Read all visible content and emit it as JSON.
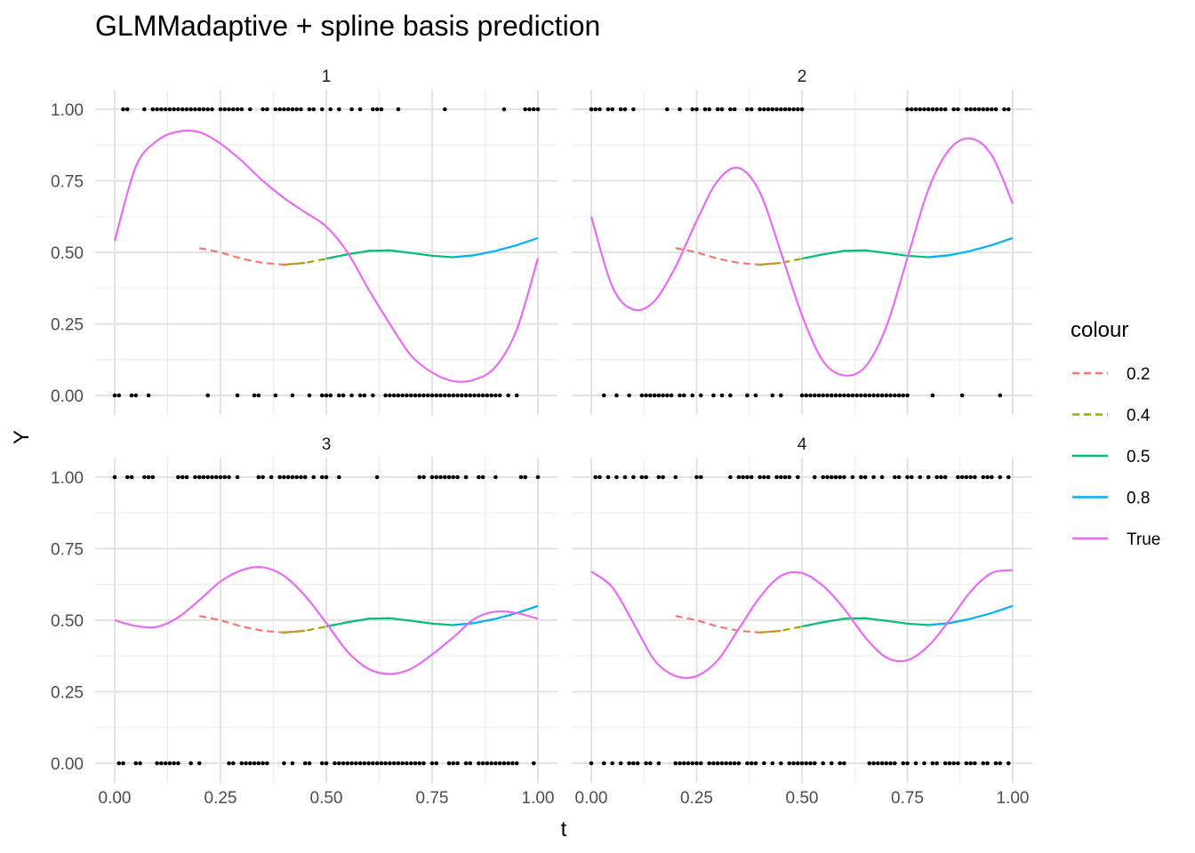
{
  "chart_data": {
    "type": "line",
    "title": "GLMMadaptive + spline basis prediction",
    "xlabel": "t",
    "ylabel": "Y",
    "xlim": [
      0,
      1
    ],
    "ylim": [
      0,
      1
    ],
    "x_ticks": [
      "0.00",
      "0.25",
      "0.50",
      "0.75",
      "1.00"
    ],
    "y_ticks": [
      "0.00",
      "0.25",
      "0.50",
      "0.75",
      "1.00"
    ],
    "grid": true,
    "legend": {
      "title": "colour",
      "placement": "right",
      "entries": [
        {
          "label": "0.2",
          "color": "#F8766D",
          "dashed": true
        },
        {
          "label": "0.4",
          "color": "#A3A500",
          "dashed": true
        },
        {
          "label": "0.5",
          "color": "#00BF7D",
          "dashed": false
        },
        {
          "label": "0.8",
          "color": "#00B0F6",
          "dashed": false
        },
        {
          "label": "True",
          "color": "#E76BF3",
          "dashed": false
        }
      ]
    },
    "colors": {
      "0.2": "#F8766D",
      "0.4": "#A3A500",
      "0.5": "#00BF7D",
      "0.8": "#00B0F6",
      "True": "#E76BF3",
      "points": "#000000"
    },
    "predicted_series": {
      "segments": [
        {
          "name": "0.2",
          "x_range": [
            0.2,
            0.45
          ]
        },
        {
          "name": "0.4",
          "x_range": [
            0.4,
            0.65
          ]
        },
        {
          "name": "0.5",
          "x_range": [
            0.5,
            0.85
          ]
        },
        {
          "name": "0.8",
          "x_range": [
            0.8,
            1.0
          ]
        }
      ],
      "x": [
        0.2,
        0.25,
        0.3,
        0.35,
        0.4,
        0.45,
        0.5,
        0.55,
        0.6,
        0.65,
        0.7,
        0.75,
        0.8,
        0.85,
        0.9,
        0.95,
        1.0
      ],
      "y": [
        0.515,
        0.5,
        0.478,
        0.463,
        0.457,
        0.463,
        0.478,
        0.493,
        0.505,
        0.507,
        0.498,
        0.488,
        0.483,
        0.49,
        0.505,
        0.525,
        0.55
      ]
    },
    "panels": [
      {
        "label": "1",
        "true_curve": {
          "x": [
            0.0,
            0.05,
            0.1,
            0.15,
            0.2,
            0.25,
            0.3,
            0.35,
            0.4,
            0.45,
            0.5,
            0.55,
            0.6,
            0.65,
            0.7,
            0.75,
            0.8,
            0.85,
            0.9,
            0.95,
            1.0
          ],
          "y": [
            0.54,
            0.8,
            0.89,
            0.922,
            0.92,
            0.88,
            0.82,
            0.75,
            0.69,
            0.64,
            0.59,
            0.5,
            0.37,
            0.25,
            0.14,
            0.08,
            0.05,
            0.055,
            0.1,
            0.23,
            0.48
          ]
        },
        "points_y1": [
          0.02,
          0.03,
          0.07,
          0.09,
          0.1,
          0.11,
          0.12,
          0.13,
          0.14,
          0.15,
          0.16,
          0.17,
          0.18,
          0.19,
          0.2,
          0.21,
          0.22,
          0.23,
          0.25,
          0.26,
          0.27,
          0.28,
          0.29,
          0.3,
          0.32,
          0.35,
          0.36,
          0.38,
          0.39,
          0.4,
          0.41,
          0.42,
          0.43,
          0.44,
          0.46,
          0.47,
          0.49,
          0.51,
          0.53,
          0.56,
          0.58,
          0.61,
          0.62,
          0.63,
          0.67,
          0.78,
          0.92,
          0.97,
          0.98,
          0.99,
          1.0
        ],
        "points_y0": [
          0.0,
          0.01,
          0.04,
          0.05,
          0.08,
          0.22,
          0.29,
          0.33,
          0.34,
          0.38,
          0.42,
          0.46,
          0.49,
          0.5,
          0.51,
          0.53,
          0.54,
          0.56,
          0.58,
          0.59,
          0.61,
          0.64,
          0.65,
          0.66,
          0.67,
          0.68,
          0.69,
          0.7,
          0.71,
          0.72,
          0.73,
          0.74,
          0.75,
          0.76,
          0.77,
          0.78,
          0.79,
          0.8,
          0.81,
          0.82,
          0.83,
          0.84,
          0.85,
          0.86,
          0.87,
          0.88,
          0.89,
          0.9,
          0.91,
          0.93,
          0.95
        ]
      },
      {
        "label": "2",
        "true_curve": {
          "x": [
            0.0,
            0.05,
            0.1,
            0.15,
            0.2,
            0.25,
            0.3,
            0.35,
            0.4,
            0.45,
            0.5,
            0.55,
            0.6,
            0.65,
            0.7,
            0.75,
            0.8,
            0.85,
            0.9,
            0.95,
            1.0
          ],
          "y": [
            0.625,
            0.38,
            0.3,
            0.33,
            0.45,
            0.61,
            0.75,
            0.795,
            0.71,
            0.5,
            0.28,
            0.12,
            0.07,
            0.1,
            0.24,
            0.48,
            0.72,
            0.86,
            0.898,
            0.84,
            0.67
          ]
        },
        "points_y1": [
          0.0,
          0.01,
          0.02,
          0.04,
          0.05,
          0.07,
          0.08,
          0.1,
          0.18,
          0.21,
          0.24,
          0.25,
          0.27,
          0.28,
          0.3,
          0.31,
          0.33,
          0.34,
          0.37,
          0.38,
          0.4,
          0.41,
          0.42,
          0.43,
          0.44,
          0.45,
          0.46,
          0.47,
          0.48,
          0.49,
          0.5,
          0.75,
          0.76,
          0.77,
          0.78,
          0.79,
          0.8,
          0.81,
          0.82,
          0.83,
          0.84,
          0.86,
          0.87,
          0.89,
          0.9,
          0.91,
          0.92,
          0.93,
          0.94,
          0.95,
          0.96,
          0.98,
          0.99
        ],
        "points_y0": [
          0.03,
          0.06,
          0.09,
          0.12,
          0.13,
          0.14,
          0.15,
          0.16,
          0.17,
          0.18,
          0.19,
          0.21,
          0.22,
          0.24,
          0.26,
          0.29,
          0.31,
          0.33,
          0.37,
          0.39,
          0.43,
          0.45,
          0.5,
          0.51,
          0.52,
          0.53,
          0.54,
          0.55,
          0.56,
          0.57,
          0.58,
          0.59,
          0.6,
          0.61,
          0.62,
          0.63,
          0.64,
          0.65,
          0.66,
          0.67,
          0.68,
          0.69,
          0.7,
          0.71,
          0.72,
          0.73,
          0.74,
          0.75,
          0.81,
          0.88,
          0.97
        ]
      },
      {
        "label": "3",
        "true_curve": {
          "x": [
            0.0,
            0.05,
            0.1,
            0.15,
            0.2,
            0.25,
            0.3,
            0.35,
            0.4,
            0.45,
            0.5,
            0.55,
            0.6,
            0.65,
            0.7,
            0.75,
            0.8,
            0.85,
            0.9,
            0.95,
            1.0
          ],
          "y": [
            0.5,
            0.48,
            0.477,
            0.51,
            0.57,
            0.635,
            0.675,
            0.685,
            0.655,
            0.585,
            0.49,
            0.39,
            0.33,
            0.312,
            0.33,
            0.38,
            0.44,
            0.505,
            0.53,
            0.525,
            0.505
          ]
        },
        "points_y1": [
          0.0,
          0.03,
          0.04,
          0.07,
          0.08,
          0.09,
          0.15,
          0.16,
          0.17,
          0.19,
          0.2,
          0.21,
          0.22,
          0.23,
          0.24,
          0.25,
          0.26,
          0.27,
          0.29,
          0.34,
          0.35,
          0.37,
          0.39,
          0.4,
          0.41,
          0.42,
          0.43,
          0.44,
          0.45,
          0.47,
          0.49,
          0.5,
          0.53,
          0.62,
          0.72,
          0.73,
          0.75,
          0.76,
          0.77,
          0.78,
          0.79,
          0.8,
          0.81,
          0.83,
          0.86,
          0.87,
          0.9,
          0.96,
          0.97,
          1.0
        ],
        "points_y0": [
          0.01,
          0.02,
          0.05,
          0.06,
          0.1,
          0.11,
          0.12,
          0.13,
          0.14,
          0.15,
          0.18,
          0.2,
          0.27,
          0.28,
          0.3,
          0.31,
          0.32,
          0.33,
          0.34,
          0.35,
          0.36,
          0.4,
          0.42,
          0.45,
          0.46,
          0.49,
          0.5,
          0.52,
          0.53,
          0.54,
          0.55,
          0.56,
          0.57,
          0.58,
          0.59,
          0.6,
          0.61,
          0.62,
          0.63,
          0.64,
          0.65,
          0.66,
          0.67,
          0.68,
          0.69,
          0.7,
          0.71,
          0.72,
          0.73,
          0.75,
          0.76,
          0.79,
          0.8,
          0.81,
          0.83,
          0.84,
          0.86,
          0.87,
          0.88,
          0.89,
          0.9,
          0.91,
          0.92,
          0.93,
          0.94,
          0.95,
          0.99
        ]
      },
      {
        "label": "4",
        "true_curve": {
          "x": [
            0.0,
            0.05,
            0.1,
            0.15,
            0.2,
            0.25,
            0.3,
            0.35,
            0.4,
            0.45,
            0.5,
            0.55,
            0.6,
            0.65,
            0.7,
            0.75,
            0.8,
            0.85,
            0.9,
            0.95,
            1.0
          ],
          "y": [
            0.67,
            0.615,
            0.49,
            0.36,
            0.305,
            0.305,
            0.36,
            0.47,
            0.58,
            0.655,
            0.665,
            0.62,
            0.54,
            0.44,
            0.37,
            0.36,
            0.41,
            0.5,
            0.6,
            0.665,
            0.675
          ]
        },
        "points_y1": [
          0.01,
          0.02,
          0.04,
          0.06,
          0.08,
          0.1,
          0.12,
          0.13,
          0.16,
          0.17,
          0.2,
          0.25,
          0.26,
          0.33,
          0.35,
          0.36,
          0.37,
          0.38,
          0.4,
          0.41,
          0.42,
          0.44,
          0.45,
          0.46,
          0.47,
          0.49,
          0.53,
          0.55,
          0.56,
          0.57,
          0.58,
          0.59,
          0.6,
          0.62,
          0.64,
          0.65,
          0.67,
          0.69,
          0.72,
          0.73,
          0.75,
          0.76,
          0.78,
          0.8,
          0.82,
          0.83,
          0.84,
          0.87,
          0.88,
          0.89,
          0.9,
          0.91,
          0.93,
          0.94,
          0.95,
          0.97,
          0.99
        ],
        "points_y0": [
          0.0,
          0.03,
          0.05,
          0.07,
          0.09,
          0.1,
          0.11,
          0.13,
          0.14,
          0.16,
          0.2,
          0.21,
          0.22,
          0.23,
          0.24,
          0.25,
          0.26,
          0.28,
          0.29,
          0.3,
          0.31,
          0.32,
          0.33,
          0.34,
          0.35,
          0.37,
          0.38,
          0.39,
          0.41,
          0.43,
          0.45,
          0.47,
          0.48,
          0.49,
          0.5,
          0.51,
          0.52,
          0.53,
          0.55,
          0.57,
          0.59,
          0.6,
          0.66,
          0.67,
          0.68,
          0.69,
          0.7,
          0.71,
          0.72,
          0.74,
          0.75,
          0.77,
          0.79,
          0.81,
          0.82,
          0.84,
          0.85,
          0.86,
          0.87,
          0.89,
          0.9,
          0.91,
          0.93,
          0.94,
          0.96,
          0.97,
          0.99
        ]
      }
    ]
  }
}
